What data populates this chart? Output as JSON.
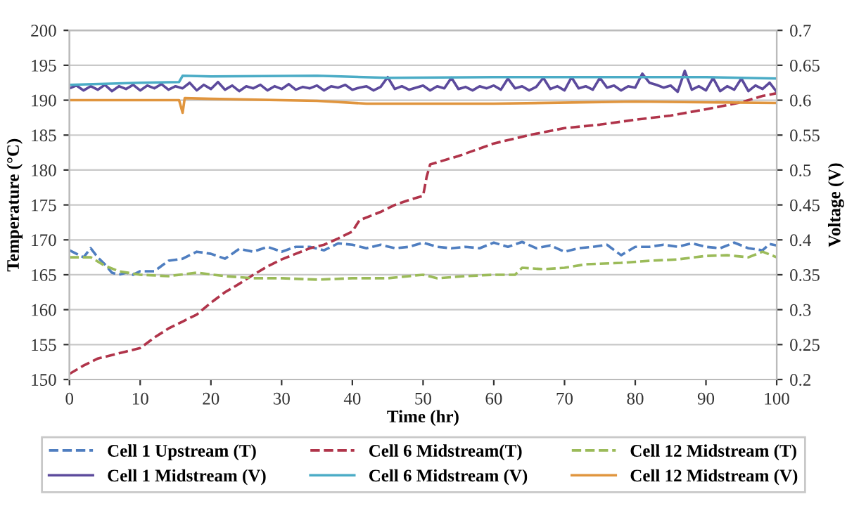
{
  "chart_data": {
    "type": "line",
    "xlabel": "Time (hr)",
    "ylabel": "Temperature (°C)",
    "y2label": "Voltage (V)",
    "xlim": [
      0,
      100
    ],
    "xticks": [
      0,
      10,
      20,
      30,
      40,
      50,
      60,
      70,
      80,
      90,
      100
    ],
    "ylim": [
      150,
      200
    ],
    "yticks": [
      150,
      155,
      160,
      165,
      170,
      175,
      180,
      185,
      190,
      195,
      200
    ],
    "y2lim": [
      0.2,
      0.7
    ],
    "y2ticks": [
      0.2,
      0.25,
      0.3,
      0.35,
      0.4,
      0.45,
      0.5,
      0.55,
      0.6,
      0.65,
      0.7
    ],
    "grid": "y",
    "legend": "bottom",
    "marker": "none",
    "series": [
      {
        "name": "Cell 1 Upstream (T)",
        "color": "#4f7ec0",
        "line_style": "dashed",
        "x": [
          0,
          2,
          3,
          4,
          5,
          6,
          7,
          8,
          9,
          10,
          12,
          14,
          16,
          18,
          20,
          22,
          24,
          26,
          28,
          30,
          32,
          34,
          36,
          38,
          40,
          42,
          44,
          46,
          48,
          50,
          52,
          54,
          56,
          58,
          60,
          62,
          64,
          66,
          68,
          70,
          72,
          74,
          76,
          78,
          80,
          82,
          84,
          86,
          88,
          90,
          92,
          94,
          96,
          98,
          99,
          100
        ],
        "values": [
          168.5,
          167.5,
          168.8,
          167.5,
          166.5,
          165.3,
          165,
          165.3,
          165,
          165.5,
          165.5,
          167,
          167.3,
          168.3,
          168,
          167.3,
          168.7,
          168.3,
          169,
          168.3,
          169,
          169,
          168.5,
          169.5,
          169.3,
          168.8,
          169.3,
          168.8,
          169,
          169.6,
          169,
          168.8,
          169,
          168.8,
          169.6,
          169,
          169.7,
          168.8,
          169.2,
          168.3,
          168.8,
          169,
          169.3,
          167.8,
          169,
          169,
          169.3,
          169,
          169.5,
          169,
          168.8,
          169.6,
          168.8,
          168.5,
          169.4,
          169.2
        ]
      },
      {
        "name": "Cell 1 Midstream (V)",
        "color": "#5c4a9c",
        "line_style": "solid",
        "axis": "y2",
        "x": [
          0,
          1,
          2,
          3,
          4,
          5,
          6,
          7,
          8,
          9,
          10,
          11,
          12,
          13,
          14,
          15,
          16,
          17,
          18,
          19,
          20,
          21,
          22,
          23,
          24,
          25,
          26,
          27,
          28,
          29,
          30,
          31,
          32,
          33,
          34,
          35,
          36,
          37,
          38,
          39,
          40,
          41,
          42,
          43,
          44,
          45,
          46,
          47,
          48,
          49,
          50,
          51,
          52,
          53,
          54,
          55,
          56,
          57,
          58,
          59,
          60,
          61,
          62,
          63,
          64,
          65,
          66,
          67,
          68,
          69,
          70,
          71,
          72,
          73,
          74,
          75,
          76,
          77,
          78,
          79,
          80,
          81,
          82,
          83,
          84,
          85,
          86,
          87,
          88,
          89,
          90,
          91,
          92,
          93,
          94,
          95,
          96,
          97,
          98,
          99,
          100
        ],
        "values": [
          0.617,
          0.621,
          0.614,
          0.62,
          0.615,
          0.622,
          0.613,
          0.62,
          0.616,
          0.622,
          0.614,
          0.621,
          0.617,
          0.623,
          0.615,
          0.62,
          0.617,
          0.625,
          0.614,
          0.622,
          0.616,
          0.626,
          0.615,
          0.621,
          0.613,
          0.62,
          0.617,
          0.622,
          0.614,
          0.62,
          0.616,
          0.623,
          0.615,
          0.619,
          0.617,
          0.621,
          0.614,
          0.62,
          0.618,
          0.622,
          0.615,
          0.618,
          0.62,
          0.614,
          0.619,
          0.633,
          0.616,
          0.62,
          0.615,
          0.618,
          0.621,
          0.614,
          0.62,
          0.617,
          0.632,
          0.616,
          0.619,
          0.614,
          0.62,
          0.617,
          0.621,
          0.615,
          0.631,
          0.617,
          0.62,
          0.614,
          0.619,
          0.632,
          0.616,
          0.62,
          0.614,
          0.633,
          0.617,
          0.62,
          0.615,
          0.632,
          0.618,
          0.621,
          0.614,
          0.62,
          0.618,
          0.638,
          0.625,
          0.622,
          0.618,
          0.621,
          0.612,
          0.642,
          0.615,
          0.62,
          0.614,
          0.632,
          0.613,
          0.62,
          0.615,
          0.631,
          0.613,
          0.621,
          0.616,
          0.625,
          0.612
        ]
      },
      {
        "name": "Cell 6 Midstream(T)",
        "color": "#b0344a",
        "line_style": "dashed",
        "x": [
          0,
          2,
          4,
          6,
          8,
          10,
          12,
          14,
          16,
          18,
          20,
          22,
          24,
          26,
          28,
          30,
          32,
          34,
          36,
          38,
          40,
          41,
          44,
          46,
          48,
          50,
          50.5,
          51,
          55,
          60,
          65,
          70,
          75,
          80,
          85,
          90,
          95,
          98,
          100
        ],
        "values": [
          150.8,
          152,
          153,
          153.5,
          154,
          154.5,
          156,
          157.3,
          158.3,
          159.3,
          161,
          162.5,
          163.7,
          165,
          166.2,
          167.2,
          168,
          168.8,
          169.3,
          170.2,
          171.2,
          172.8,
          174,
          175,
          175.7,
          176.3,
          179,
          180.8,
          182,
          183.8,
          185,
          186,
          186.5,
          187.2,
          187.8,
          188.7,
          189.7,
          190.6,
          191
        ]
      },
      {
        "name": "Cell 6 Midstream (V)",
        "color": "#4bacc6",
        "line_style": "solid",
        "axis": "y2",
        "x": [
          0,
          10,
          15.5,
          16,
          20,
          35,
          45,
          60,
          80,
          90,
          100
        ],
        "values": [
          0.622,
          0.625,
          0.626,
          0.635,
          0.634,
          0.635,
          0.632,
          0.633,
          0.633,
          0.633,
          0.631
        ]
      },
      {
        "name": "Cell 12 Midstream (T)",
        "color": "#9bbb59",
        "line_style": "dashed",
        "x": [
          0,
          3,
          5,
          7,
          10,
          14,
          18,
          22,
          26,
          30,
          35,
          40,
          45,
          50,
          52,
          56,
          60,
          63,
          64,
          67,
          70,
          73,
          78,
          82,
          86,
          90,
          93,
          96,
          98,
          100
        ],
        "values": [
          167.5,
          167.5,
          166.3,
          165.5,
          165,
          164.8,
          165.3,
          164.8,
          164.5,
          164.5,
          164.3,
          164.5,
          164.5,
          165,
          164.5,
          164.8,
          165,
          165,
          166,
          165.8,
          166,
          166.5,
          166.7,
          167,
          167.2,
          167.7,
          167.8,
          167.5,
          168.3,
          167.5
        ]
      },
      {
        "name": "Cell 12 Midstream (V)",
        "color": "#e0953e",
        "line_style": "solid",
        "axis": "y2",
        "x": [
          0,
          15.5,
          16,
          16.3,
          20,
          35,
          42,
          60,
          80,
          100
        ],
        "values": [
          0.6,
          0.6,
          0.582,
          0.603,
          0.602,
          0.599,
          0.595,
          0.595,
          0.598,
          0.596
        ]
      }
    ]
  }
}
